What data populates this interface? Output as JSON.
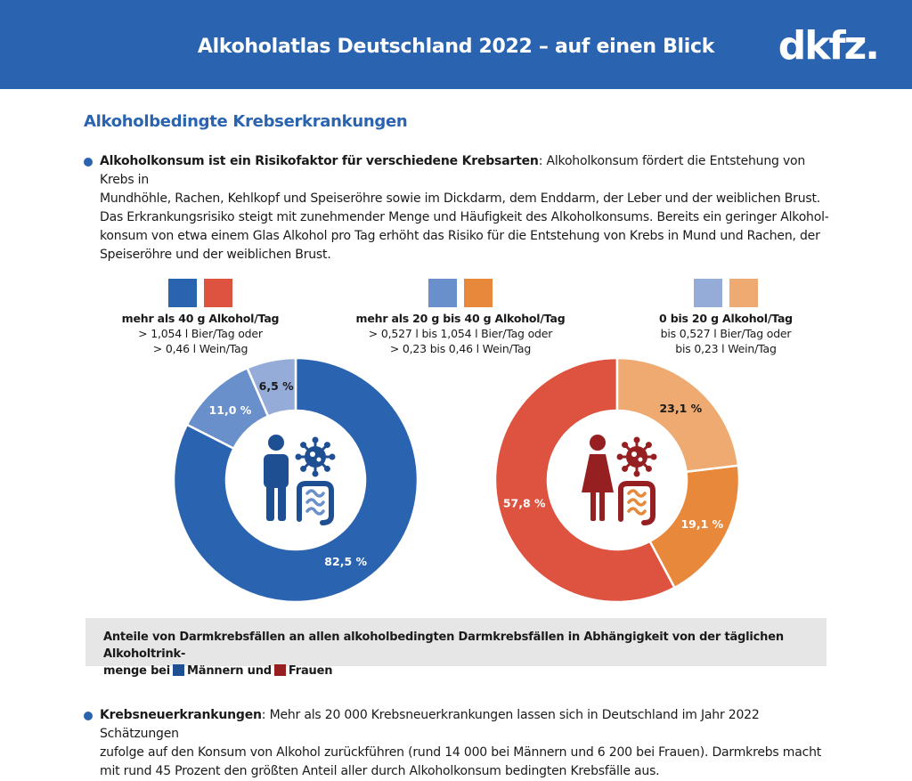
{
  "header": {
    "title": "Alkoholatlas Deutschland 2022 – auf einen Blick",
    "logo": "dkfz."
  },
  "section_title": "Alkoholbedingte Krebserkrankungen",
  "bullet1": {
    "bold": "Alkoholkonsum ist ein Risikofaktor für verschiedene Krebsarten",
    "lines": [
      ": Alkoholkonsum fördert die Entstehung von Krebs in",
      "Mundhöhle, Rachen, Kehlkopf und Speiseröhre sowie im Dickdarm, dem Enddarm, der Leber und der weiblichen Brust.",
      "Das Erkrankungsrisiko steigt mit zunehmender Menge und Häufigkeit des Alkoholkonsums. Bereits ein geringer Alkohol-",
      "konsum von etwa einem Glas Alkohol pro Tag erhöht das Risiko für die Entstehung von Krebs in Mund und Rachen, der",
      "Speiseröhre und der weiblichen Brust."
    ]
  },
  "legend": [
    {
      "title": "mehr als 40 g Alkohol/Tag",
      "line1": "> 1,054 l Bier/Tag oder",
      "line2": "> 0,46 l Wein/Tag",
      "male_color": "#2a64b0",
      "female_color": "#de5340"
    },
    {
      "title": "mehr als 20 g bis 40 g Alkohol/Tag",
      "line1": "> 0,527 l bis 1,054 l Bier/Tag oder",
      "line2": "> 0,23 bis 0,46 l Wein/Tag",
      "male_color": "#6a90cc",
      "female_color": "#e8883a"
    },
    {
      "title": "0 bis 20 g Alkohol/Tag",
      "line1": "bis 0,527 l Bier/Tag oder",
      "line2": "bis 0,23 l Wein/Tag",
      "male_color": "#95acd9",
      "female_color": "#efaa72"
    }
  ],
  "chart_data": [
    {
      "type": "pie",
      "categories": [
        "mehr als 40 g Alkohol/Tag",
        "mehr als 20 g bis 40 g Alkohol/Tag",
        "0 bis 20 g Alkohol/Tag"
      ],
      "values": [
        82.5,
        11.0,
        6.5
      ],
      "labels": [
        "82,5 %",
        "11,0 %",
        "6,5 %"
      ],
      "colors": [
        "#2a64b0",
        "#6a90cc",
        "#95acd9"
      ],
      "label_colors": [
        "#ffffff",
        "#ffffff",
        "#1a1a1a"
      ],
      "icon_color": "#1e4f93"
    },
    {
      "type": "pie",
      "categories": [
        "mehr als 40 g Alkohol/Tag",
        "mehr als 20 g bis 40 g Alkohol/Tag",
        "0 bis 20 g Alkohol/Tag"
      ],
      "values": [
        57.8,
        19.1,
        23.1
      ],
      "labels": [
        "57,8 %",
        "19,1 %",
        "23,1 %"
      ],
      "colors": [
        "#de5340",
        "#e8883a",
        "#efaa72"
      ],
      "label_colors": [
        "#ffffff",
        "#ffffff",
        "#1a1a1a"
      ],
      "icon_color": "#962021"
    }
  ],
  "caption": {
    "line1": "Anteile von Darmkrebsfällen an allen alkoholbedingten Darmkrebsfällen in Abhängigkeit von der täglichen Alkoholtrink-",
    "line2_prefix": "menge bei",
    "men_label": "Männern und",
    "women_label": "Frauen",
    "men_color": "#1e4f93",
    "women_color": "#962021"
  },
  "bullet2": {
    "bold": "Krebsneuerkrankungen",
    "lines": [
      ": Mehr als 20 000 Krebsneuerkrankungen lassen sich in Deutschland im Jahr 2022 Schätzungen",
      "zufolge auf den Konsum von Alkohol zurückführen (rund 14 000 bei Männern und 6 200 bei Frauen). Darmkrebs macht",
      "mit rund 45 Prozent den größten Anteil aller durch Alkoholkonsum bedingten Krebsfälle aus."
    ]
  }
}
